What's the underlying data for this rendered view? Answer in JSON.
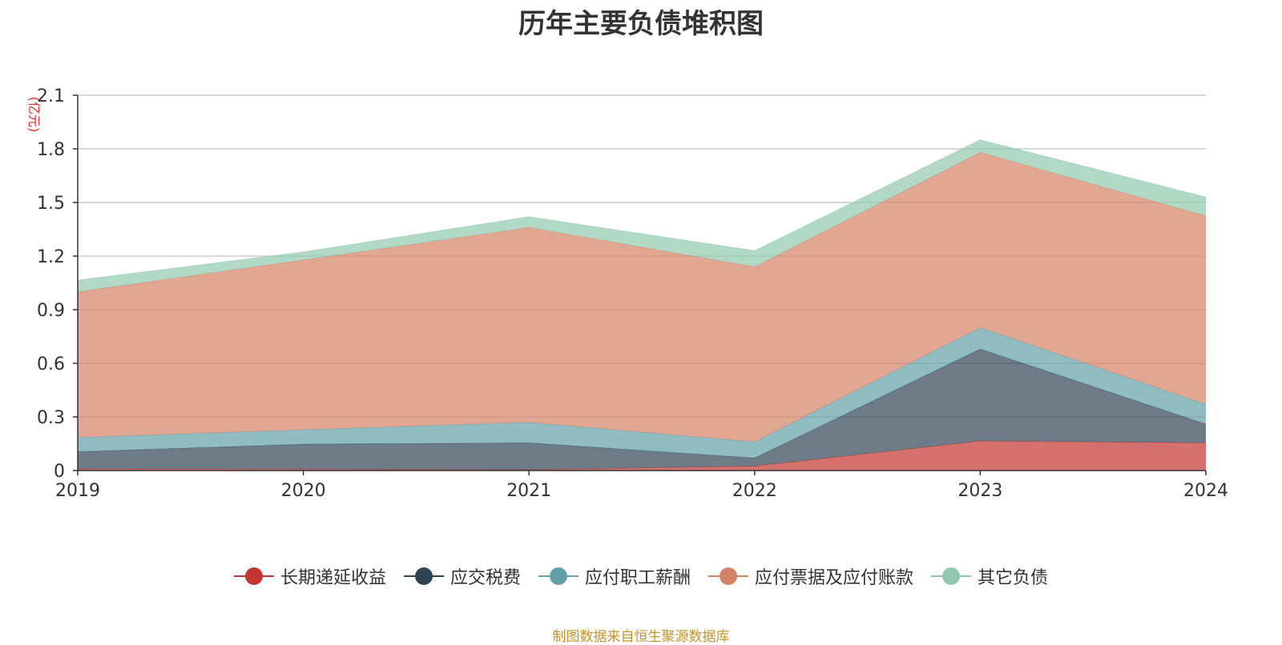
{
  "chart_data": {
    "type": "area",
    "stacked": true,
    "title": "历年主要负债堆积图",
    "ylabel": "(亿元)",
    "xlabel": "",
    "ylim": [
      0,
      2.1
    ],
    "yticks": [
      "0",
      "0.3",
      "0.6",
      "0.9",
      "1.2",
      "1.5",
      "1.8",
      "2.1"
    ],
    "categories": [
      "2019",
      "2020",
      "2021",
      "2022",
      "2023",
      "2024"
    ],
    "series": [
      {
        "name": "长期递延收益",
        "color": "#c23531",
        "values": [
          0.01,
          0.008,
          0.005,
          0.025,
          0.165,
          0.155
        ]
      },
      {
        "name": "应交税费",
        "color": "#2f4554",
        "values": [
          0.095,
          0.14,
          0.15,
          0.045,
          0.515,
          0.105
        ]
      },
      {
        "name": "应付职工薪酬",
        "color": "#61a0a8",
        "values": [
          0.08,
          0.08,
          0.115,
          0.09,
          0.12,
          0.11
        ]
      },
      {
        "name": "应付票据及应付账款",
        "color": "#d48265",
        "values": [
          0.815,
          0.95,
          1.09,
          0.98,
          0.98,
          1.055
        ]
      },
      {
        "name": "其它负债",
        "color": "#91c7ae",
        "values": [
          0.065,
          0.045,
          0.06,
          0.09,
          0.07,
          0.105
        ]
      }
    ],
    "legend_position": "bottom",
    "grid": true
  },
  "source_text": "制图数据来自恒生聚源数据库"
}
